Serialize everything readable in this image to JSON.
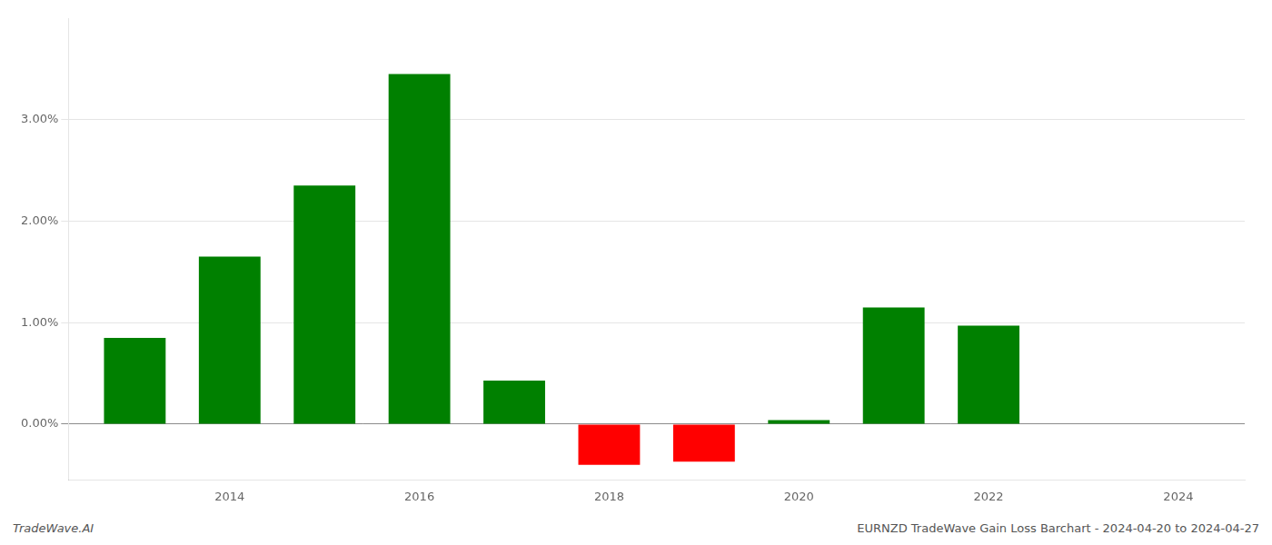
{
  "chart_data": {
    "type": "bar",
    "x": [
      2013,
      2014,
      2015,
      2016,
      2017,
      2018,
      2019,
      2020,
      2021,
      2022
    ],
    "values": [
      0.0085,
      0.0165,
      0.0235,
      0.0345,
      0.0043,
      -0.004,
      -0.0037,
      0.0004,
      0.0115,
      0.0097
    ],
    "colors": [
      "#008000",
      "#008000",
      "#008000",
      "#008000",
      "#008000",
      "#ff0000",
      "#ff0000",
      "#008000",
      "#008000",
      "#008000"
    ],
    "xlim": [
      2012.3,
      2024.7
    ],
    "xticks": [
      2014,
      2016,
      2018,
      2020,
      2022,
      2024
    ],
    "ylim": [
      -0.0055,
      0.04
    ],
    "yticks": [
      {
        "value": 0.0,
        "label": "0.00%"
      },
      {
        "value": 0.01,
        "label": "1.00%"
      },
      {
        "value": 0.02,
        "label": "2.00%"
      },
      {
        "value": 0.03,
        "label": "3.00%"
      }
    ],
    "grid": true,
    "annotations": [
      "TradeWave.AI",
      "EURNZD TradeWave Gain Loss Barchart - 2024-04-20 to 2024-04-27"
    ]
  }
}
